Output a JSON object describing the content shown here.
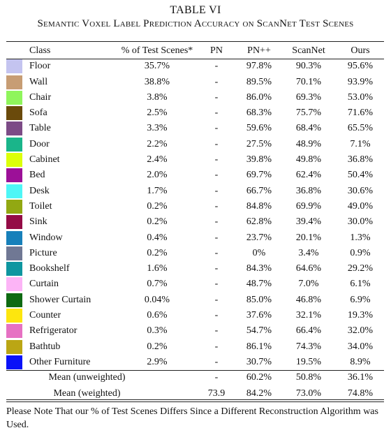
{
  "table": {
    "number": "TABLE VI",
    "title": "Semantic Voxel Label Prediction Accuracy on ScanNet Test Scenes",
    "headers": {
      "class": "Class",
      "pct": "% of Test Scenes*",
      "pn": "PN",
      "pnpp": "PN++",
      "scannet": "ScanNet",
      "ours": "Ours"
    },
    "rows": [
      {
        "class": "Floor",
        "color": "#c4c4f0",
        "pct": "35.7%",
        "pn": "-",
        "pnpp": "97.8%",
        "scannet": "90.3%",
        "ours": "95.6%"
      },
      {
        "class": "Wall",
        "color": "#c79d74",
        "pct": "38.8%",
        "pn": "-",
        "pnpp": "89.5%",
        "scannet": "70.1%",
        "ours": "93.9%"
      },
      {
        "class": "Chair",
        "color": "#8ff55c",
        "pct": "3.8%",
        "pn": "-",
        "pnpp": "86.0%",
        "scannet": "69.3%",
        "ours": "53.0%"
      },
      {
        "class": "Sofa",
        "color": "#6a4a0b",
        "pct": "2.5%",
        "pn": "-",
        "pnpp": "68.3%",
        "scannet": "75.7%",
        "ours": "71.6%"
      },
      {
        "class": "Table",
        "color": "#7c4b86",
        "pct": "3.3%",
        "pn": "-",
        "pnpp": "59.6%",
        "scannet": "68.4%",
        "ours": "65.5%"
      },
      {
        "class": "Door",
        "color": "#1ab58a",
        "pct": "2.2%",
        "pn": "-",
        "pnpp": "27.5%",
        "scannet": "48.9%",
        "ours": "7.1%"
      },
      {
        "class": "Cabinet",
        "color": "#dcff0a",
        "pct": "2.4%",
        "pn": "-",
        "pnpp": "39.8%",
        "scannet": "49.8%",
        "ours": "36.8%"
      },
      {
        "class": "Bed",
        "color": "#9c1098",
        "pct": "2.0%",
        "pn": "-",
        "pnpp": "69.7%",
        "scannet": "62.4%",
        "ours": "50.4%"
      },
      {
        "class": "Desk",
        "color": "#4ef6f6",
        "pct": "1.7%",
        "pn": "-",
        "pnpp": "66.7%",
        "scannet": "36.8%",
        "ours": "30.6%"
      },
      {
        "class": "Toilet",
        "color": "#92a812",
        "pct": "0.2%",
        "pn": "-",
        "pnpp": "84.8%",
        "scannet": "69.9%",
        "ours": "49.0%"
      },
      {
        "class": "Sink",
        "color": "#940c46",
        "pct": "0.2%",
        "pn": "-",
        "pnpp": "62.8%",
        "scannet": "39.4%",
        "ours": "30.0%"
      },
      {
        "class": "Window",
        "color": "#1780ba",
        "pct": "0.4%",
        "pn": "-",
        "pnpp": "23.7%",
        "scannet": "20.1%",
        "ours": "1.3%"
      },
      {
        "class": "Picture",
        "color": "#707894",
        "pct": "0.2%",
        "pn": "-",
        "pnpp": "0%",
        "scannet": "3.4%",
        "ours": "0.9%"
      },
      {
        "class": "Bookshelf",
        "color": "#0e96a0",
        "pct": "1.6%",
        "pn": "-",
        "pnpp": "84.3%",
        "scannet": "64.6%",
        "ours": "29.2%"
      },
      {
        "class": "Curtain",
        "color": "#fcb4f6",
        "pct": "0.7%",
        "pn": "-",
        "pnpp": "48.7%",
        "scannet": "7.0%",
        "ours": "6.1%"
      },
      {
        "class": "Shower Curtain",
        "color": "#0e6a12",
        "pct": "0.04%",
        "pn": "-",
        "pnpp": "85.0%",
        "scannet": "46.8%",
        "ours": "6.9%"
      },
      {
        "class": "Counter",
        "color": "#fde60e",
        "pct": "0.6%",
        "pn": "-",
        "pnpp": "37.6%",
        "scannet": "32.1%",
        "ours": "19.3%"
      },
      {
        "class": "Refrigerator",
        "color": "#e671c3",
        "pct": "0.3%",
        "pn": "-",
        "pnpp": "54.7%",
        "scannet": "66.4%",
        "ours": "32.0%"
      },
      {
        "class": "Bathtub",
        "color": "#bba614",
        "pct": "0.2%",
        "pn": "-",
        "pnpp": "86.1%",
        "scannet": "74.3%",
        "ours": "34.0%"
      },
      {
        "class": "Other Furniture",
        "color": "#0a12f8",
        "pct": "2.9%",
        "pn": "-",
        "pnpp": "30.7%",
        "scannet": "19.5%",
        "ours": "8.9%"
      }
    ],
    "summary": [
      {
        "label": "Mean (unweighted)",
        "pn": "-",
        "pnpp": "60.2%",
        "scannet": "50.8%",
        "ours": "36.1%"
      },
      {
        "label": "Mean (weighted)",
        "pn": "73.9",
        "pnpp": "84.2%",
        "scannet": "73.0%",
        "ours": "74.8%"
      }
    ],
    "note": "Please Note That our % of Test Scenes Differs Since a Different Reconstruction Algorithm was Used."
  }
}
